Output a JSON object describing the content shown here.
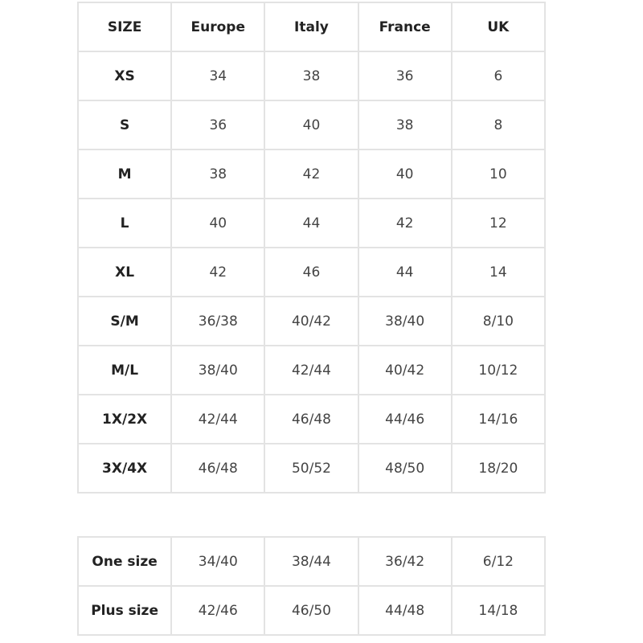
{
  "size_table": {
    "headers": [
      "SIZE",
      "Europe",
      "Italy",
      "France",
      "UK"
    ],
    "rows": [
      [
        "XS",
        "34",
        "38",
        "36",
        "6"
      ],
      [
        "S",
        "36",
        "40",
        "38",
        "8"
      ],
      [
        "M",
        "38",
        "42",
        "40",
        "10"
      ],
      [
        "L",
        "40",
        "44",
        "42",
        "12"
      ],
      [
        "XL",
        "42",
        "46",
        "44",
        "14"
      ],
      [
        "S/M",
        "36/38",
        "40/42",
        "38/40",
        "8/10"
      ],
      [
        "M/L",
        "38/40",
        "42/44",
        "40/42",
        "10/12"
      ],
      [
        "1X/2X",
        "42/44",
        "46/48",
        "44/46",
        "14/16"
      ],
      [
        "3X/4X",
        "46/48",
        "50/52",
        "48/50",
        "18/20"
      ]
    ]
  },
  "special_table": {
    "rows": [
      [
        "One size",
        "34/40",
        "38/44",
        "36/42",
        "6/12"
      ],
      [
        "Plus size",
        "42/46",
        "46/50",
        "44/48",
        "14/18"
      ]
    ]
  },
  "colors": {
    "border": "#e3e3e3",
    "header_text": "#222222",
    "cell_text": "#444444"
  }
}
